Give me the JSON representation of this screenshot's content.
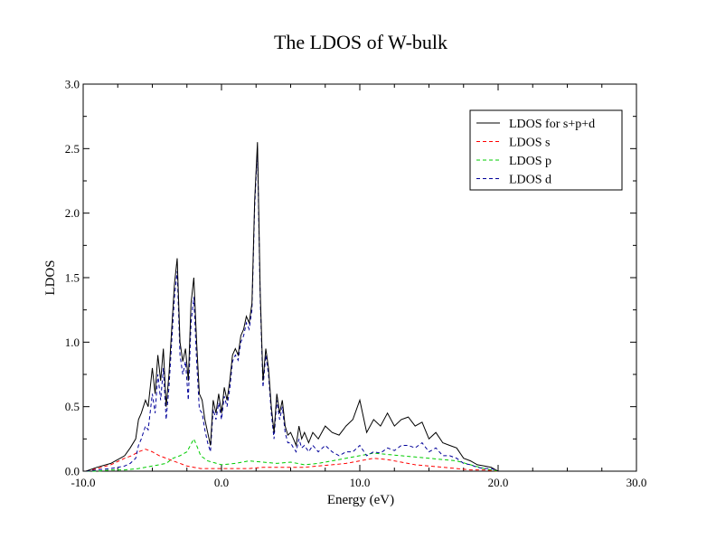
{
  "chart_data": {
    "type": "line",
    "title": "The LDOS of W-bulk",
    "xlabel": "Energy (eV)",
    "ylabel": "LDOS",
    "xlim": [
      -10.0,
      30.0
    ],
    "ylim": [
      0.0,
      3.0
    ],
    "xticks": [
      -10.0,
      0.0,
      10.0,
      20.0,
      30.0
    ],
    "xtick_labels": [
      "-10.0",
      "0.0",
      "10.0",
      "20.0",
      "30.0"
    ],
    "yticks": [
      0.0,
      0.5,
      1.0,
      1.5,
      2.0,
      2.5,
      3.0
    ],
    "ytick_labels": [
      "0.0",
      "0.5",
      "1.0",
      "1.5",
      "2.0",
      "2.5",
      "3.0"
    ],
    "grid": false,
    "legend_position": "top-right",
    "series": [
      {
        "name": "LDOS for s+p+d",
        "color": "#000000",
        "dash": "solid",
        "x": [
          -9.8,
          -9.0,
          -8.0,
          -7.5,
          -7.0,
          -6.6,
          -6.2,
          -6.0,
          -5.8,
          -5.5,
          -5.3,
          -5.0,
          -4.8,
          -4.6,
          -4.4,
          -4.2,
          -4.0,
          -3.8,
          -3.6,
          -3.4,
          -3.2,
          -3.0,
          -2.8,
          -2.6,
          -2.4,
          -2.2,
          -2.0,
          -1.8,
          -1.6,
          -1.4,
          -1.2,
          -1.0,
          -0.8,
          -0.6,
          -0.4,
          -0.2,
          0.0,
          0.2,
          0.4,
          0.6,
          0.8,
          1.0,
          1.2,
          1.4,
          1.6,
          1.8,
          2.0,
          2.2,
          2.4,
          2.6,
          2.8,
          3.0,
          3.2,
          3.4,
          3.6,
          3.8,
          4.0,
          4.2,
          4.4,
          4.6,
          4.8,
          5.0,
          5.2,
          5.4,
          5.6,
          5.8,
          6.0,
          6.3,
          6.6,
          7.0,
          7.5,
          8.0,
          8.5,
          9.0,
          9.5,
          10.0,
          10.5,
          11.0,
          11.5,
          12.0,
          12.5,
          13.0,
          13.5,
          14.0,
          14.5,
          15.0,
          15.5,
          16.0,
          16.5,
          17.0,
          17.5,
          18.0,
          18.5,
          19.0,
          19.5,
          20.0
        ],
        "y": [
          0.0,
          0.03,
          0.06,
          0.09,
          0.12,
          0.18,
          0.25,
          0.4,
          0.45,
          0.55,
          0.5,
          0.8,
          0.6,
          0.9,
          0.7,
          0.95,
          0.5,
          0.75,
          1.1,
          1.45,
          1.65,
          1.0,
          0.85,
          0.95,
          0.7,
          1.3,
          1.5,
          1.0,
          0.6,
          0.55,
          0.4,
          0.3,
          0.2,
          0.55,
          0.45,
          0.6,
          0.45,
          0.65,
          0.55,
          0.7,
          0.9,
          0.95,
          0.9,
          1.05,
          1.1,
          1.2,
          1.15,
          1.3,
          2.1,
          2.55,
          1.4,
          0.7,
          0.95,
          0.8,
          0.5,
          0.3,
          0.6,
          0.45,
          0.55,
          0.35,
          0.28,
          0.3,
          0.25,
          0.2,
          0.35,
          0.25,
          0.3,
          0.22,
          0.3,
          0.25,
          0.35,
          0.3,
          0.28,
          0.35,
          0.4,
          0.55,
          0.3,
          0.4,
          0.35,
          0.45,
          0.35,
          0.4,
          0.42,
          0.35,
          0.38,
          0.25,
          0.3,
          0.22,
          0.2,
          0.18,
          0.1,
          0.08,
          0.05,
          0.04,
          0.03,
          0.0
        ]
      },
      {
        "name": "LDOS s",
        "color": "#ff0000",
        "dash": "dashed",
        "x": [
          -9.8,
          -9.0,
          -8.0,
          -7.0,
          -6.5,
          -6.0,
          -5.5,
          -5.0,
          -4.5,
          -4.0,
          -3.5,
          -3.0,
          -2.5,
          -2.0,
          -1.5,
          -1.0,
          0.0,
          1.0,
          2.0,
          3.0,
          4.0,
          5.0,
          6.0,
          7.0,
          8.0,
          9.0,
          10.0,
          11.0,
          12.0,
          13.0,
          14.0,
          15.0,
          16.0,
          17.0,
          18.0,
          19.0,
          20.0
        ],
        "y": [
          0.0,
          0.02,
          0.05,
          0.1,
          0.12,
          0.15,
          0.17,
          0.15,
          0.12,
          0.1,
          0.08,
          0.06,
          0.04,
          0.03,
          0.02,
          0.02,
          0.02,
          0.02,
          0.02,
          0.03,
          0.03,
          0.03,
          0.03,
          0.04,
          0.05,
          0.06,
          0.08,
          0.1,
          0.09,
          0.07,
          0.05,
          0.04,
          0.03,
          0.02,
          0.01,
          0.01,
          0.0
        ]
      },
      {
        "name": "LDOS p",
        "color": "#00cc00",
        "dash": "dashed",
        "x": [
          -9.8,
          -9.0,
          -8.0,
          -7.0,
          -6.0,
          -5.0,
          -4.0,
          -3.5,
          -3.0,
          -2.5,
          -2.0,
          -1.8,
          -1.5,
          -1.0,
          0.0,
          1.0,
          2.0,
          3.0,
          4.0,
          5.0,
          6.0,
          7.0,
          8.0,
          9.0,
          10.0,
          11.0,
          12.0,
          13.0,
          14.0,
          15.0,
          16.0,
          17.0,
          18.0,
          19.0,
          20.0
        ],
        "y": [
          0.0,
          0.0,
          0.01,
          0.01,
          0.02,
          0.04,
          0.06,
          0.1,
          0.12,
          0.15,
          0.25,
          0.2,
          0.12,
          0.08,
          0.05,
          0.06,
          0.08,
          0.07,
          0.06,
          0.07,
          0.05,
          0.06,
          0.08,
          0.1,
          0.12,
          0.14,
          0.13,
          0.12,
          0.11,
          0.1,
          0.09,
          0.08,
          0.05,
          0.02,
          0.0
        ]
      },
      {
        "name": "LDOS d",
        "color": "#000099",
        "dash": "dashed",
        "x": [
          -9.8,
          -9.0,
          -8.0,
          -7.5,
          -7.0,
          -6.6,
          -6.2,
          -6.0,
          -5.8,
          -5.5,
          -5.3,
          -5.0,
          -4.8,
          -4.6,
          -4.4,
          -4.2,
          -4.0,
          -3.8,
          -3.6,
          -3.4,
          -3.2,
          -3.0,
          -2.8,
          -2.6,
          -2.4,
          -2.2,
          -2.0,
          -1.8,
          -1.6,
          -1.4,
          -1.2,
          -1.0,
          -0.8,
          -0.6,
          -0.4,
          -0.2,
          0.0,
          0.2,
          0.4,
          0.6,
          0.8,
          1.0,
          1.2,
          1.4,
          1.6,
          1.8,
          2.0,
          2.2,
          2.4,
          2.6,
          2.8,
          3.0,
          3.2,
          3.4,
          3.6,
          3.8,
          4.0,
          4.2,
          4.4,
          4.6,
          4.8,
          5.0,
          5.2,
          5.4,
          5.6,
          5.8,
          6.0,
          6.3,
          6.6,
          7.0,
          7.5,
          8.0,
          8.5,
          9.0,
          9.5,
          10.0,
          10.5,
          11.0,
          11.5,
          12.0,
          12.5,
          13.0,
          13.5,
          14.0,
          14.5,
          15.0,
          15.5,
          16.0,
          16.5,
          17.0,
          17.5,
          18.0,
          18.5,
          19.0,
          19.5,
          20.0
        ],
        "y": [
          0.0,
          0.01,
          0.02,
          0.03,
          0.04,
          0.06,
          0.1,
          0.2,
          0.25,
          0.35,
          0.32,
          0.6,
          0.45,
          0.75,
          0.55,
          0.8,
          0.4,
          0.65,
          1.0,
          1.35,
          1.55,
          0.9,
          0.75,
          0.85,
          0.55,
          1.15,
          1.35,
          0.85,
          0.48,
          0.45,
          0.32,
          0.22,
          0.15,
          0.48,
          0.4,
          0.53,
          0.4,
          0.58,
          0.5,
          0.64,
          0.85,
          0.9,
          0.86,
          1.0,
          1.05,
          1.15,
          1.1,
          1.25,
          2.05,
          2.5,
          1.35,
          0.65,
          0.9,
          0.75,
          0.45,
          0.25,
          0.55,
          0.4,
          0.5,
          0.3,
          0.22,
          0.22,
          0.18,
          0.15,
          0.25,
          0.18,
          0.2,
          0.15,
          0.2,
          0.15,
          0.2,
          0.15,
          0.12,
          0.15,
          0.15,
          0.2,
          0.12,
          0.15,
          0.14,
          0.18,
          0.16,
          0.2,
          0.2,
          0.18,
          0.22,
          0.15,
          0.18,
          0.12,
          0.12,
          0.1,
          0.06,
          0.05,
          0.03,
          0.02,
          0.02,
          0.0
        ]
      }
    ]
  }
}
